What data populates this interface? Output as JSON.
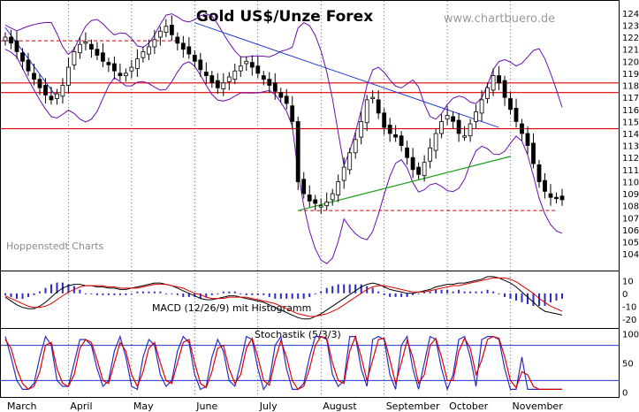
{
  "title": "Gold US$/Unze Forex",
  "watermark": "www.chartbuero.de",
  "provider": "Hoppenstedt Charts",
  "colors": {
    "candle": "#000000",
    "band": "#6a0dad",
    "trend": "#1f3bd6",
    "support": "#1aa01a",
    "hline": "#e00000",
    "macd_hist": "#2b2bc8",
    "stoch_ref": "#2233cc",
    "stoch_k": "#2b2bc8",
    "stoch_d": "#dd0000"
  },
  "chart_data": [
    {
      "type": "candlestick",
      "title": "Gold US$/Unze Forex",
      "ylim": [
        1035,
        1245
      ],
      "yticks": [
        1040,
        1050,
        1060,
        1070,
        1080,
        1090,
        1100,
        1110,
        1120,
        1130,
        1140,
        1150,
        1160,
        1170,
        1180,
        1190,
        1200,
        1210,
        1220,
        1230,
        1240
      ],
      "months": [
        "March",
        "April",
        "May",
        "June",
        "July",
        "August",
        "September",
        "October",
        "November"
      ],
      "closes": [
        1220,
        1215,
        1208,
        1200,
        1192,
        1185,
        1178,
        1172,
        1168,
        1173,
        1180,
        1195,
        1208,
        1214,
        1216,
        1210,
        1205,
        1200,
        1197,
        1192,
        1188,
        1190,
        1195,
        1202,
        1208,
        1212,
        1218,
        1225,
        1229,
        1222,
        1215,
        1210,
        1206,
        1200,
        1193,
        1188,
        1182,
        1178,
        1182,
        1187,
        1192,
        1196,
        1200,
        1195,
        1190,
        1185,
        1180,
        1175,
        1170,
        1165,
        1150,
        1100,
        1090,
        1084,
        1082,
        1080,
        1083,
        1090,
        1100,
        1112,
        1124,
        1135,
        1150,
        1168,
        1170,
        1157,
        1145,
        1140,
        1137,
        1130,
        1120,
        1110,
        1106,
        1116,
        1128,
        1140,
        1150,
        1155,
        1150,
        1140,
        1138,
        1148,
        1158,
        1168,
        1178,
        1188,
        1182,
        1170,
        1160,
        1150,
        1140,
        1130,
        1115,
        1100,
        1092,
        1087,
        1086,
        1085
      ],
      "horizontal_lines": [
        1182,
        1174,
        1144
      ],
      "dashed_levels": [
        1217,
        1076
      ],
      "resistance_trend": [
        [
          33,
          1232
        ],
        [
          86,
          1145
        ]
      ],
      "support_trend": [
        [
          51,
          1076
        ],
        [
          88,
          1121
        ]
      ]
    },
    {
      "type": "bar+line",
      "title": "MACD (12/26/9) mit Histogramm",
      "ylim": [
        -25,
        15
      ],
      "yticks": [
        10,
        0,
        -10,
        -20
      ],
      "macd": [
        -3,
        -6,
        -9,
        -11,
        -12,
        -12,
        -10,
        -7,
        -3,
        1,
        4,
        6,
        7,
        7,
        6,
        6,
        5,
        5,
        4,
        4,
        3,
        3,
        4,
        5,
        6,
        7,
        8,
        8,
        7,
        6,
        4,
        2,
        0,
        -2,
        -4,
        -5,
        -5,
        -4,
        -3,
        -2,
        -2,
        -3,
        -4,
        -5,
        -6,
        -7,
        -9,
        -11,
        -13,
        -15,
        -17,
        -19,
        -20,
        -20,
        -18,
        -16,
        -13,
        -10,
        -7,
        -4,
        -1,
        2,
        5,
        7,
        8,
        7,
        5,
        3,
        2,
        1,
        0,
        0,
        1,
        2,
        3,
        5,
        6,
        7,
        7,
        8,
        8,
        9,
        10,
        11,
        13,
        13,
        12,
        10,
        8,
        5,
        1,
        -3,
        -7,
        -11,
        -14,
        -15,
        -16,
        -17
      ],
      "signal": [
        -2,
        -4,
        -6,
        -8,
        -10,
        -11,
        -11,
        -10,
        -8,
        -5,
        -2,
        1,
        3,
        5,
        6,
        6,
        6,
        6,
        5,
        5,
        4,
        4,
        4,
        4,
        5,
        6,
        7,
        7,
        7,
        6,
        5,
        4,
        2,
        0,
        -1,
        -3,
        -4,
        -4,
        -4,
        -3,
        -3,
        -3,
        -3,
        -4,
        -5,
        -6,
        -7,
        -8,
        -10,
        -12,
        -14,
        -16,
        -17,
        -18,
        -18,
        -17,
        -16,
        -14,
        -12,
        -9,
        -6,
        -3,
        0,
        3,
        5,
        6,
        6,
        5,
        4,
        3,
        2,
        1,
        1,
        1,
        2,
        3,
        4,
        5,
        6,
        6,
        7,
        8,
        9,
        10,
        11,
        12,
        12,
        12,
        11,
        9,
        6,
        3,
        0,
        -4,
        -7,
        -10,
        -12,
        -14
      ]
    },
    {
      "type": "line",
      "title": "Stochastik (5/3/3)",
      "ylim": [
        -5,
        105
      ],
      "yticks": [
        100,
        50,
        0
      ],
      "ref_levels": [
        80,
        20
      ],
      "k": [
        95,
        60,
        20,
        5,
        5,
        15,
        60,
        95,
        80,
        20,
        10,
        10,
        50,
        90,
        90,
        80,
        40,
        10,
        20,
        70,
        95,
        60,
        10,
        5,
        60,
        90,
        80,
        30,
        10,
        20,
        70,
        95,
        85,
        30,
        5,
        10,
        60,
        90,
        70,
        20,
        10,
        50,
        95,
        90,
        40,
        5,
        20,
        80,
        95,
        40,
        5,
        5,
        15,
        60,
        95,
        95,
        90,
        30,
        10,
        20,
        95,
        95,
        40,
        10,
        90,
        95,
        90,
        30,
        5,
        80,
        95,
        40,
        5,
        50,
        95,
        90,
        40,
        5,
        30,
        90,
        95,
        60,
        10,
        90,
        95,
        95,
        90,
        40,
        5,
        5,
        60,
        5,
        5,
        5,
        5,
        5,
        5,
        5
      ],
      "d": [
        90,
        75,
        40,
        15,
        5,
        10,
        35,
        80,
        85,
        40,
        15,
        10,
        30,
        75,
        90,
        85,
        55,
        20,
        15,
        50,
        85,
        70,
        30,
        10,
        35,
        75,
        85,
        50,
        20,
        15,
        50,
        85,
        90,
        50,
        15,
        8,
        35,
        75,
        80,
        40,
        15,
        30,
        75,
        92,
        60,
        20,
        12,
        55,
        88,
        60,
        20,
        5,
        10,
        40,
        80,
        95,
        92,
        50,
        20,
        15,
        70,
        95,
        60,
        20,
        55,
        90,
        92,
        55,
        15,
        50,
        88,
        60,
        15,
        30,
        80,
        92,
        60,
        20,
        20,
        70,
        92,
        75,
        30,
        55,
        90,
        95,
        92,
        60,
        20,
        8,
        35,
        30,
        10,
        5,
        5,
        5,
        5,
        5
      ]
    }
  ]
}
